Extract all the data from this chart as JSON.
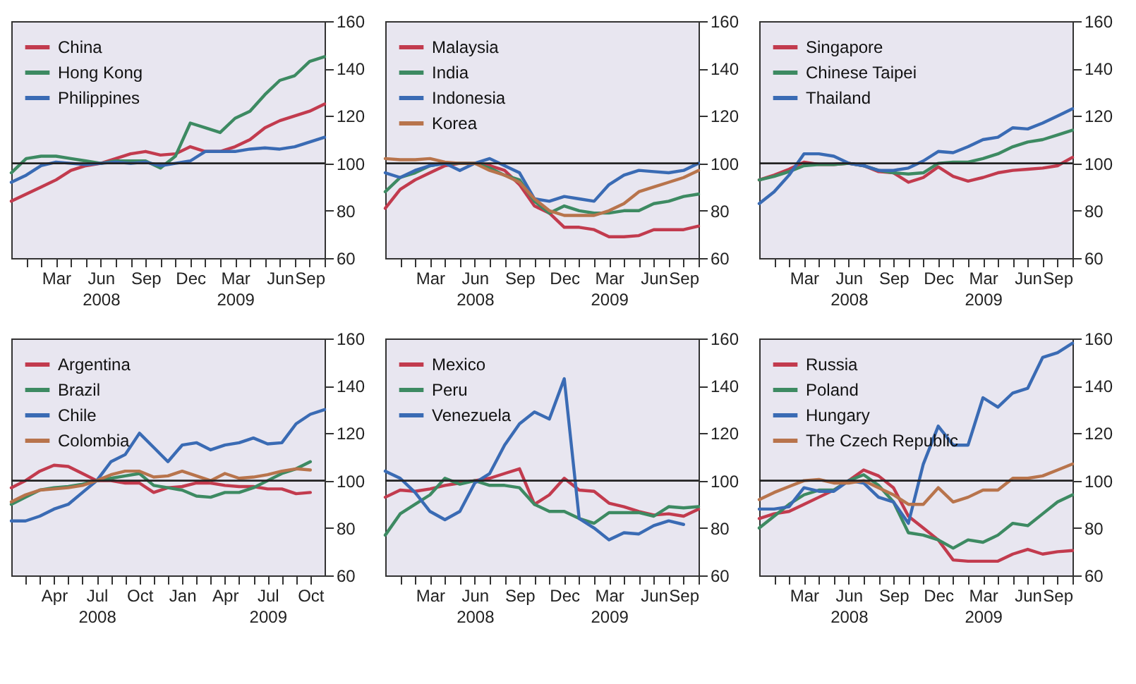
{
  "chart_data": [
    {
      "type": "line",
      "x": [
        "2007-12",
        "2008-01",
        "2008-02",
        "2008-03",
        "2008-04",
        "2008-05",
        "2008-06",
        "2008-07",
        "2008-08",
        "2008-09",
        "2008-10",
        "2008-11",
        "2008-12",
        "2009-01",
        "2009-02",
        "2009-03",
        "2009-04",
        "2009-05",
        "2009-06",
        "2009-07",
        "2009-08",
        "2009-09"
      ],
      "series": [
        {
          "name": "China",
          "color": "#c23b4e",
          "values": [
            84,
            87,
            90,
            93,
            97,
            99,
            100,
            102,
            104,
            105,
            103.5,
            104,
            107,
            105,
            105,
            107,
            110,
            115,
            118,
            120,
            122,
            125
          ]
        },
        {
          "name": "Hong Kong",
          "color": "#3d8a62",
          "values": [
            96,
            102,
            103,
            103,
            102,
            101,
            100,
            101,
            101,
            101,
            98,
            103,
            117,
            115,
            113,
            119,
            122,
            129,
            135,
            137,
            143,
            145
          ]
        },
        {
          "name": "Philippines",
          "color": "#3a6bb4",
          "values": [
            92,
            95,
            99,
            100.5,
            100,
            99.5,
            100,
            100.5,
            100,
            100.5,
            99,
            100,
            101,
            105,
            105,
            105,
            106,
            106.5,
            106,
            107,
            109,
            111
          ]
        }
      ],
      "xlim": [
        "2007-12",
        "2009-09"
      ],
      "ylim": [
        60,
        160
      ],
      "yticks": [
        60,
        80,
        100,
        120,
        140,
        160
      ],
      "xticks": [
        {
          "value": "2008-01",
          "label": null
        },
        {
          "value": "2008-02",
          "label": null
        },
        {
          "value": "2008-03",
          "label": "Mar"
        },
        {
          "value": "2008-04",
          "label": null
        },
        {
          "value": "2008-05",
          "label": null
        },
        {
          "value": "2008-06",
          "label": "Jun\n2008"
        },
        {
          "value": "2008-07",
          "label": null
        },
        {
          "value": "2008-08",
          "label": null
        },
        {
          "value": "2008-09",
          "label": "Sep"
        },
        {
          "value": "2008-10",
          "label": null
        },
        {
          "value": "2008-11",
          "label": null
        },
        {
          "value": "2008-12",
          "label": "Dec"
        },
        {
          "value": "2009-01",
          "label": null
        },
        {
          "value": "2009-02",
          "label": null
        },
        {
          "value": "2009-03",
          "label": "Mar\n2009"
        },
        {
          "value": "2009-04",
          "label": null
        },
        {
          "value": "2009-05",
          "label": null
        },
        {
          "value": "2009-06",
          "label": "Jun"
        },
        {
          "value": "2009-07",
          "label": null
        },
        {
          "value": "2009-08",
          "label": null
        },
        {
          "value": "2009-09",
          "label": "Sep"
        }
      ],
      "ref_lines": [
        {
          "axis": "y",
          "value": 100
        }
      ],
      "legend": "top left"
    },
    {
      "type": "line",
      "x": [
        "2007-12",
        "2008-01",
        "2008-02",
        "2008-03",
        "2008-04",
        "2008-05",
        "2008-06",
        "2008-07",
        "2008-08",
        "2008-09",
        "2008-10",
        "2008-11",
        "2008-12",
        "2009-01",
        "2009-02",
        "2009-03",
        "2009-04",
        "2009-05",
        "2009-06",
        "2009-07",
        "2009-08",
        "2009-09"
      ],
      "series": [
        {
          "name": "Malaysia",
          "color": "#c23b4e",
          "values": [
            81,
            89,
            93,
            96,
            99,
            100,
            100,
            99,
            97,
            91,
            82,
            79,
            73,
            73,
            72,
            69,
            69,
            69.5,
            72,
            72,
            72,
            73.5
          ]
        },
        {
          "name": "India",
          "color": "#3d8a62",
          "values": [
            88,
            94,
            96,
            99,
            100,
            100,
            100,
            98,
            95,
            93,
            84,
            79,
            82,
            80,
            79,
            79,
            80,
            80,
            83,
            84,
            86,
            87
          ]
        },
        {
          "name": "Indonesia",
          "color": "#3a6bb4",
          "values": [
            96,
            94,
            97,
            99,
            100,
            97,
            100,
            102,
            99,
            96,
            85,
            84,
            86,
            85,
            84,
            91,
            95,
            97,
            96.5,
            96,
            97,
            100
          ]
        },
        {
          "name": "Korea",
          "color": "#b8744c",
          "values": [
            102,
            101.5,
            101.5,
            102,
            100.5,
            100,
            100,
            97,
            95,
            92,
            85,
            80,
            78,
            78,
            78,
            80,
            83,
            88,
            90,
            92,
            94,
            97
          ]
        }
      ],
      "xlim": [
        "2007-12",
        "2009-09"
      ],
      "ylim": [
        60,
        160
      ],
      "yticks": [
        60,
        80,
        100,
        120,
        140,
        160
      ],
      "xticks": [
        {
          "value": "2008-01",
          "label": null
        },
        {
          "value": "2008-02",
          "label": null
        },
        {
          "value": "2008-03",
          "label": "Mar"
        },
        {
          "value": "2008-04",
          "label": null
        },
        {
          "value": "2008-05",
          "label": null
        },
        {
          "value": "2008-06",
          "label": "Jun\n2008"
        },
        {
          "value": "2008-07",
          "label": null
        },
        {
          "value": "2008-08",
          "label": null
        },
        {
          "value": "2008-09",
          "label": "Sep"
        },
        {
          "value": "2008-10",
          "label": null
        },
        {
          "value": "2008-11",
          "label": null
        },
        {
          "value": "2008-12",
          "label": "Dec"
        },
        {
          "value": "2009-01",
          "label": null
        },
        {
          "value": "2009-02",
          "label": null
        },
        {
          "value": "2009-03",
          "label": "Mar\n2009"
        },
        {
          "value": "2009-04",
          "label": null
        },
        {
          "value": "2009-05",
          "label": null
        },
        {
          "value": "2009-06",
          "label": "Jun"
        },
        {
          "value": "2009-07",
          "label": null
        },
        {
          "value": "2009-08",
          "label": null
        },
        {
          "value": "2009-09",
          "label": "Sep"
        }
      ],
      "ref_lines": [
        {
          "axis": "y",
          "value": 100
        }
      ],
      "legend": "top left"
    },
    {
      "type": "line",
      "x": [
        "2007-12",
        "2008-01",
        "2008-02",
        "2008-03",
        "2008-04",
        "2008-05",
        "2008-06",
        "2008-07",
        "2008-08",
        "2008-09",
        "2008-10",
        "2008-11",
        "2008-12",
        "2009-01",
        "2009-02",
        "2009-03",
        "2009-04",
        "2009-05",
        "2009-06",
        "2009-07",
        "2009-08",
        "2009-09"
      ],
      "series": [
        {
          "name": "Singapore",
          "color": "#c23b4e",
          "values": [
            93,
            95,
            97.5,
            100.5,
            99.5,
            99.5,
            100,
            99,
            96.5,
            96,
            92,
            94,
            98.5,
            94.5,
            92.5,
            94,
            96,
            97,
            97.5,
            98,
            99,
            102.5
          ]
        },
        {
          "name": "Chinese Taipei",
          "color": "#3d8a62",
          "values": [
            93,
            94.5,
            96.5,
            99,
            99.5,
            99.5,
            100,
            99,
            97,
            96,
            95.5,
            96,
            100,
            100.5,
            100.5,
            102,
            104,
            107,
            109,
            110,
            112,
            114
          ]
        },
        {
          "name": "Thailand",
          "color": "#3a6bb4",
          "values": [
            83,
            88,
            95,
            104,
            104,
            103,
            100,
            99,
            97,
            97,
            98,
            101,
            105,
            104.5,
            107,
            110,
            111,
            115,
            114.5,
            117,
            120,
            123
          ]
        }
      ],
      "xlim": [
        "2007-12",
        "2009-09"
      ],
      "ylim": [
        60,
        160
      ],
      "yticks": [
        60,
        80,
        100,
        120,
        140,
        160
      ],
      "xticks": [
        {
          "value": "2008-01",
          "label": null
        },
        {
          "value": "2008-02",
          "label": null
        },
        {
          "value": "2008-03",
          "label": "Mar"
        },
        {
          "value": "2008-04",
          "label": null
        },
        {
          "value": "2008-05",
          "label": null
        },
        {
          "value": "2008-06",
          "label": "Jun\n2008"
        },
        {
          "value": "2008-07",
          "label": null
        },
        {
          "value": "2008-08",
          "label": null
        },
        {
          "value": "2008-09",
          "label": "Sep"
        },
        {
          "value": "2008-10",
          "label": null
        },
        {
          "value": "2008-11",
          "label": null
        },
        {
          "value": "2008-12",
          "label": "Dec"
        },
        {
          "value": "2009-01",
          "label": null
        },
        {
          "value": "2009-02",
          "label": null
        },
        {
          "value": "2009-03",
          "label": "Mar\n2009"
        },
        {
          "value": "2009-04",
          "label": null
        },
        {
          "value": "2009-05",
          "label": null
        },
        {
          "value": "2009-06",
          "label": "Jun"
        },
        {
          "value": "2009-07",
          "label": null
        },
        {
          "value": "2009-08",
          "label": null
        },
        {
          "value": "2009-09",
          "label": "Sep"
        }
      ],
      "ref_lines": [
        {
          "axis": "y",
          "value": 100
        }
      ],
      "legend": "top left"
    },
    {
      "type": "line",
      "x": [
        "2008-01",
        "2008-02",
        "2008-03",
        "2008-04",
        "2008-05",
        "2008-06",
        "2008-07",
        "2008-08",
        "2008-09",
        "2008-10",
        "2008-11",
        "2008-12",
        "2009-01",
        "2009-02",
        "2009-03",
        "2009-04",
        "2009-05",
        "2009-06",
        "2009-07",
        "2009-08",
        "2009-09",
        "2009-10",
        "2009-11"
      ],
      "series": [
        {
          "name": "Argentina",
          "color": "#c23b4e",
          "values": [
            97,
            100,
            104,
            106.5,
            106,
            103,
            100,
            100,
            99,
            99,
            95,
            97,
            97.5,
            99,
            99,
            98,
            97.5,
            97.5,
            96.5,
            96.5,
            94.5,
            95,
            null
          ]
        },
        {
          "name": "Brazil",
          "color": "#3d8a62",
          "values": [
            90,
            93,
            96,
            97,
            97.5,
            98.5,
            100,
            101,
            102,
            103,
            98,
            97,
            96,
            93.5,
            93,
            95,
            95,
            97,
            100,
            103,
            105,
            108,
            null
          ]
        },
        {
          "name": "Chile",
          "color": "#3a6bb4",
          "values": [
            83,
            83,
            85,
            88,
            90,
            95,
            100,
            108,
            111,
            120,
            114,
            108,
            115,
            116,
            113,
            115,
            116,
            118,
            115.5,
            116,
            124,
            128,
            130
          ]
        },
        {
          "name": "Colombia",
          "color": "#b8744c",
          "values": [
            91,
            94,
            96,
            96.5,
            97,
            98,
            100,
            102.5,
            104,
            104,
            101.5,
            102,
            104,
            102,
            100,
            103,
            101,
            101.5,
            102.5,
            104,
            105,
            104.5,
            null
          ]
        }
      ],
      "xlim": [
        "2008-01",
        "2009-11"
      ],
      "ylim": [
        60,
        160
      ],
      "yticks": [
        60,
        80,
        100,
        120,
        140,
        160
      ],
      "xticks": [
        {
          "value": "2008-02",
          "label": null
        },
        {
          "value": "2008-03",
          "label": null
        },
        {
          "value": "2008-04",
          "label": "Apr"
        },
        {
          "value": "2008-05",
          "label": null
        },
        {
          "value": "2008-06",
          "label": null
        },
        {
          "value": "2008-07",
          "label": "Jul\n2008"
        },
        {
          "value": "2008-08",
          "label": null
        },
        {
          "value": "2008-09",
          "label": null
        },
        {
          "value": "2008-10",
          "label": "Oct"
        },
        {
          "value": "2008-11",
          "label": null
        },
        {
          "value": "2008-12",
          "label": null
        },
        {
          "value": "2009-01",
          "label": "Jan"
        },
        {
          "value": "2009-02",
          "label": null
        },
        {
          "value": "2009-03",
          "label": null
        },
        {
          "value": "2009-04",
          "label": "Apr"
        },
        {
          "value": "2009-05",
          "label": null
        },
        {
          "value": "2009-06",
          "label": null
        },
        {
          "value": "2009-07",
          "label": "Jul\n2009"
        },
        {
          "value": "2009-08",
          "label": null
        },
        {
          "value": "2009-09",
          "label": null
        },
        {
          "value": "2009-10",
          "label": "Oct"
        }
      ],
      "ref_lines": [
        {
          "axis": "y",
          "value": 100
        }
      ],
      "legend": "top left"
    },
    {
      "type": "line",
      "x": [
        "2007-12",
        "2008-01",
        "2008-02",
        "2008-03",
        "2008-04",
        "2008-05",
        "2008-06",
        "2008-07",
        "2008-08",
        "2008-09",
        "2008-10",
        "2008-11",
        "2008-12",
        "2009-01",
        "2009-02",
        "2009-03",
        "2009-04",
        "2009-05",
        "2009-06",
        "2009-07",
        "2009-08",
        "2009-09"
      ],
      "series": [
        {
          "name": "Mexico",
          "color": "#c23b4e",
          "values": [
            93,
            96,
            95.5,
            96.5,
            98,
            99,
            100,
            101,
            103,
            105,
            90,
            94,
            101,
            96,
            95.5,
            90.5,
            89,
            87,
            85.5,
            86,
            85,
            88
          ]
        },
        {
          "name": "Peru",
          "color": "#3d8a62",
          "values": [
            77,
            86,
            90,
            94,
            101,
            98.5,
            100,
            98,
            98,
            97,
            90,
            87,
            87,
            84,
            82,
            86.5,
            86.5,
            86.5,
            85,
            89,
            88.5,
            89
          ]
        },
        {
          "name": "Venezuela",
          "color": "#3a6bb4",
          "values": [
            104,
            101,
            95,
            87,
            83.5,
            87,
            99,
            103,
            115,
            124,
            129,
            126,
            143,
            84,
            80,
            75,
            78,
            77.5,
            81,
            83,
            81.5,
            null
          ]
        }
      ],
      "xlim": [
        "2007-12",
        "2009-09"
      ],
      "ylim": [
        60,
        160
      ],
      "yticks": [
        60,
        80,
        100,
        120,
        140,
        160
      ],
      "xticks": [
        {
          "value": "2008-01",
          "label": null
        },
        {
          "value": "2008-02",
          "label": null
        },
        {
          "value": "2008-03",
          "label": "Mar"
        },
        {
          "value": "2008-04",
          "label": null
        },
        {
          "value": "2008-05",
          "label": null
        },
        {
          "value": "2008-06",
          "label": "Jun\n2008"
        },
        {
          "value": "2008-07",
          "label": null
        },
        {
          "value": "2008-08",
          "label": null
        },
        {
          "value": "2008-09",
          "label": "Sep"
        },
        {
          "value": "2008-10",
          "label": null
        },
        {
          "value": "2008-11",
          "label": null
        },
        {
          "value": "2008-12",
          "label": "Dec"
        },
        {
          "value": "2009-01",
          "label": null
        },
        {
          "value": "2009-02",
          "label": null
        },
        {
          "value": "2009-03",
          "label": "Mar\n2009"
        },
        {
          "value": "2009-04",
          "label": null
        },
        {
          "value": "2009-05",
          "label": null
        },
        {
          "value": "2009-06",
          "label": "Jun"
        },
        {
          "value": "2009-07",
          "label": null
        },
        {
          "value": "2009-08",
          "label": null
        },
        {
          "value": "2009-09",
          "label": "Sep"
        }
      ],
      "ref_lines": [
        {
          "axis": "y",
          "value": 100
        }
      ],
      "legend": "top left"
    },
    {
      "type": "line",
      "x": [
        "2007-12",
        "2008-01",
        "2008-02",
        "2008-03",
        "2008-04",
        "2008-05",
        "2008-06",
        "2008-07",
        "2008-08",
        "2008-09",
        "2008-10",
        "2008-11",
        "2008-12",
        "2009-01",
        "2009-02",
        "2009-03",
        "2009-04",
        "2009-05",
        "2009-06",
        "2009-07",
        "2009-08",
        "2009-09"
      ],
      "series": [
        {
          "name": "Russia",
          "color": "#c23b4e",
          "values": [
            84,
            86,
            87,
            90,
            93,
            96,
            100,
            104.5,
            102,
            97,
            85,
            80,
            75,
            66.5,
            66,
            66,
            66,
            69,
            71,
            69,
            70,
            70.5
          ]
        },
        {
          "name": "Poland",
          "color": "#3d8a62",
          "values": [
            80,
            85,
            90,
            94,
            96,
            96,
            100,
            102.5,
            98,
            91,
            78,
            77,
            75,
            71.5,
            75,
            74,
            77,
            82,
            81,
            86,
            91,
            94
          ]
        },
        {
          "name": "Hungary",
          "color": "#3a6bb4",
          "values": [
            88,
            88,
            89,
            97,
            95.5,
            95.5,
            100,
            99,
            93,
            91,
            82,
            107,
            123,
            115,
            115,
            135,
            131,
            137,
            139,
            152,
            154,
            158
          ]
        },
        {
          "name": "The Czech Republic",
          "color": "#b8744c",
          "values": [
            92,
            95,
            97.5,
            100,
            100.5,
            99,
            99,
            100,
            97,
            94,
            90,
            90,
            97,
            91,
            93,
            96,
            96,
            101,
            101,
            102,
            104.5,
            107
          ]
        }
      ],
      "xlim": [
        "2007-12",
        "2009-09"
      ],
      "ylim": [
        60,
        160
      ],
      "yticks": [
        60,
        80,
        100,
        120,
        140,
        160
      ],
      "xticks": [
        {
          "value": "2008-01",
          "label": null
        },
        {
          "value": "2008-02",
          "label": null
        },
        {
          "value": "2008-03",
          "label": "Mar"
        },
        {
          "value": "2008-04",
          "label": null
        },
        {
          "value": "2008-05",
          "label": null
        },
        {
          "value": "2008-06",
          "label": "Jun\n2008"
        },
        {
          "value": "2008-07",
          "label": null
        },
        {
          "value": "2008-08",
          "label": null
        },
        {
          "value": "2008-09",
          "label": "Sep"
        },
        {
          "value": "2008-10",
          "label": null
        },
        {
          "value": "2008-11",
          "label": null
        },
        {
          "value": "2008-12",
          "label": "Dec"
        },
        {
          "value": "2009-01",
          "label": null
        },
        {
          "value": "2009-02",
          "label": null
        },
        {
          "value": "2009-03",
          "label": "Mar\n2009"
        },
        {
          "value": "2009-04",
          "label": null
        },
        {
          "value": "2009-05",
          "label": null
        },
        {
          "value": "2009-06",
          "label": "Jun"
        },
        {
          "value": "2009-07",
          "label": null
        },
        {
          "value": "2009-08",
          "label": null
        },
        {
          "value": "2009-09",
          "label": "Sep"
        }
      ],
      "ref_lines": [
        {
          "axis": "y",
          "value": 100
        }
      ],
      "legend": "top left"
    }
  ]
}
